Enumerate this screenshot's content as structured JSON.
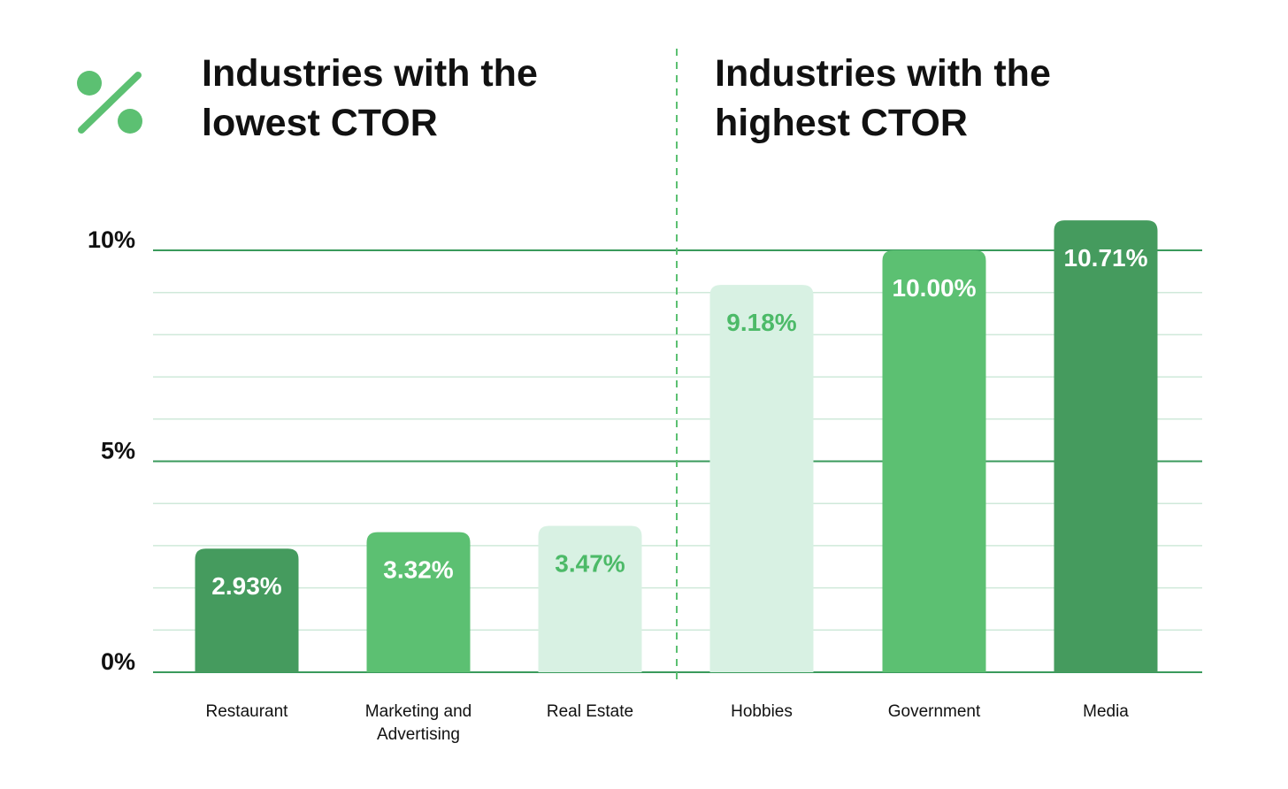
{
  "headings": {
    "left_line1": "Industries with the",
    "left_line2": "lowest CTOR",
    "right_line1": "Industries with the",
    "right_line2": "highest CTOR"
  },
  "icon": "percent-icon",
  "colors": {
    "dark_green": "#459b5e",
    "mid_green": "#5cc072",
    "light_green": "#d8f1e3",
    "label_on_light": "#4cba68",
    "label_on_dark": "#ffffff",
    "major_grid": "#3a9a5c",
    "minor_grid": "#cfe9da",
    "divider": "#5cc072"
  },
  "chart_data": {
    "type": "bar",
    "title": "",
    "xlabel": "",
    "ylabel": "",
    "ylim": [
      0,
      10
    ],
    "yticks": [
      {
        "value": 0,
        "label": "0%"
      },
      {
        "value": 5,
        "label": "5%"
      },
      {
        "value": 10,
        "label": "10%"
      }
    ],
    "grid": true,
    "groups": [
      {
        "name": "lowest",
        "heading": "Industries with the lowest CTOR"
      },
      {
        "name": "highest",
        "heading": "Industries with the highest CTOR"
      }
    ],
    "bars": [
      {
        "category_lines": [
          "Restaurant"
        ],
        "value": 2.93,
        "label": "2.93%",
        "group": "lowest",
        "shade": "dark"
      },
      {
        "category_lines": [
          "Marketing and",
          "Advertising"
        ],
        "value": 3.32,
        "label": "3.32%",
        "group": "lowest",
        "shade": "mid"
      },
      {
        "category_lines": [
          "Real Estate"
        ],
        "value": 3.47,
        "label": "3.47%",
        "group": "lowest",
        "shade": "light"
      },
      {
        "category_lines": [
          "Hobbies"
        ],
        "value": 9.18,
        "label": "9.18%",
        "group": "highest",
        "shade": "light"
      },
      {
        "category_lines": [
          "Government"
        ],
        "value": 10.0,
        "label": "10.00%",
        "group": "highest",
        "shade": "mid"
      },
      {
        "category_lines": [
          "Media"
        ],
        "value": 10.71,
        "label": "10.71%",
        "group": "highest",
        "shade": "dark"
      }
    ]
  }
}
